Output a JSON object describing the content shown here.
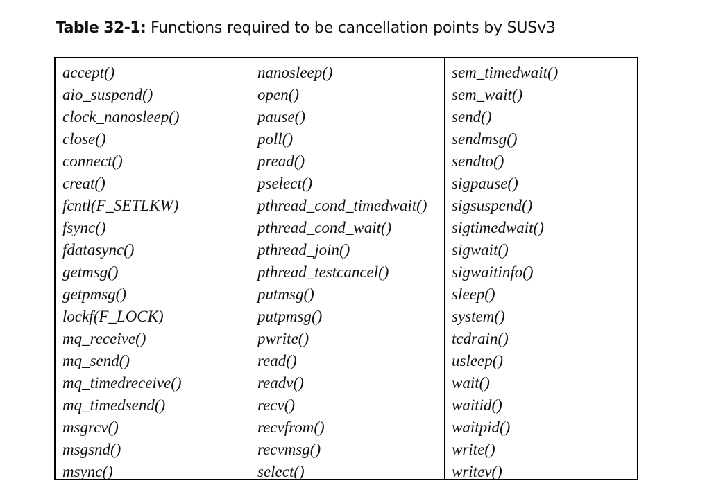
{
  "caption": {
    "label": "Table 32-1:",
    "text": "Functions required to be cancellation points by SUSv3"
  },
  "table": {
    "columns": [
      [
        "accept()",
        "aio_suspend()",
        "clock_nanosleep()",
        "close()",
        "connect()",
        "creat()",
        "fcntl(F_SETLKW)",
        "fsync()",
        "fdatasync()",
        "getmsg()",
        "getpmsg()",
        "lockf(F_LOCK)",
        "mq_receive()",
        "mq_send()",
        "mq_timedreceive()",
        "mq_timedsend()",
        "msgrcv()",
        "msgsnd()",
        "msync()"
      ],
      [
        "nanosleep()",
        "open()",
        "pause()",
        "poll()",
        "pread()",
        "pselect()",
        "pthread_cond_timedwait()",
        "pthread_cond_wait()",
        "pthread_join()",
        "pthread_testcancel()",
        "putmsg()",
        "putpmsg()",
        "pwrite()",
        "read()",
        "readv()",
        "recv()",
        "recvfrom()",
        "recvmsg()",
        "select()"
      ],
      [
        "sem_timedwait()",
        "sem_wait()",
        "send()",
        "sendmsg()",
        "sendto()",
        "sigpause()",
        "sigsuspend()",
        "sigtimedwait()",
        "sigwait()",
        "sigwaitinfo()",
        "sleep()",
        "system()",
        "tcdrain()",
        "usleep()",
        "wait()",
        "waitid()",
        "waitpid()",
        "write()",
        "writev()"
      ]
    ]
  }
}
